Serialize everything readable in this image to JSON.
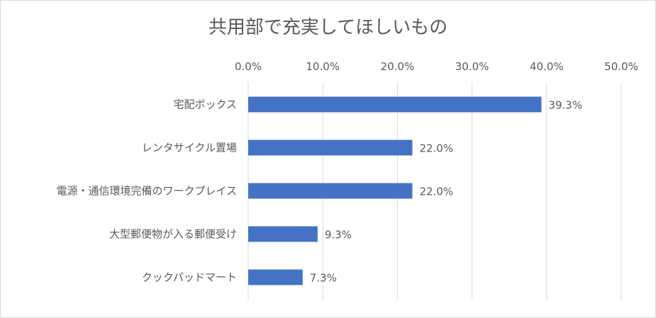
{
  "chart_data": {
    "type": "bar",
    "orientation": "horizontal",
    "title": "共用部で充実してほしいもの",
    "categories": [
      "宅配ボックス",
      "レンタサイクル置場",
      "電源・通信環境完備のワークプレイス",
      "大型郵便物が入る郵便受け",
      "クックパッドマート"
    ],
    "values": [
      39.3,
      22.0,
      22.0,
      9.3,
      7.3
    ],
    "data_labels": [
      "39.3%",
      "22.0%",
      "22.0%",
      "9.3%",
      "7.3%"
    ],
    "xlim": [
      0,
      50
    ],
    "x_ticks": [
      "0.0%",
      "10.0%",
      "20.0%",
      "30.0%",
      "40.0%",
      "50.0%"
    ],
    "x_axis_position": "top",
    "grid": true,
    "legend": "none",
    "bar_color": "#4472C4",
    "grid_color": "#d9d9d9"
  }
}
